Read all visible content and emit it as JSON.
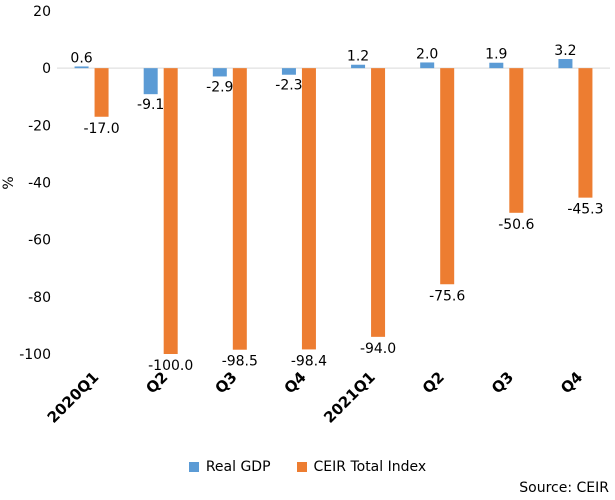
{
  "chart_data": {
    "type": "bar",
    "categories": [
      "2020Q1",
      "Q2",
      "Q3",
      "Q4",
      "2021Q1",
      "Q2",
      "Q3",
      "Q4"
    ],
    "series": [
      {
        "name": "Real GDP",
        "color": "#5b9bd5",
        "values": [
          0.6,
          -9.1,
          -2.9,
          -2.3,
          1.2,
          2.0,
          1.9,
          3.2
        ],
        "labels": [
          "0.6",
          "-9.1",
          "-2.9",
          "-2.3",
          "1.2",
          "2.0",
          "1.9",
          "3.2"
        ]
      },
      {
        "name": "CEIR Total Index",
        "color": "#ed7d31",
        "values": [
          -17.0,
          -100.0,
          -98.5,
          -98.4,
          -94.0,
          -75.6,
          -50.6,
          -45.3
        ],
        "labels": [
          "-17.0",
          "-100.0",
          "-98.5",
          "-98.4",
          "-94.0",
          "-75.6",
          "-50.6",
          "-45.3"
        ]
      }
    ],
    "ylabel": "%",
    "ylim": [
      -100,
      20
    ],
    "yticks": [
      20,
      0,
      -20,
      -40,
      -60,
      -80,
      -100
    ],
    "grid": false,
    "legend_position": "bottom"
  },
  "legend": {
    "items": [
      "Real GDP",
      "CEIR Total Index"
    ]
  },
  "source": "Source: CEIR"
}
